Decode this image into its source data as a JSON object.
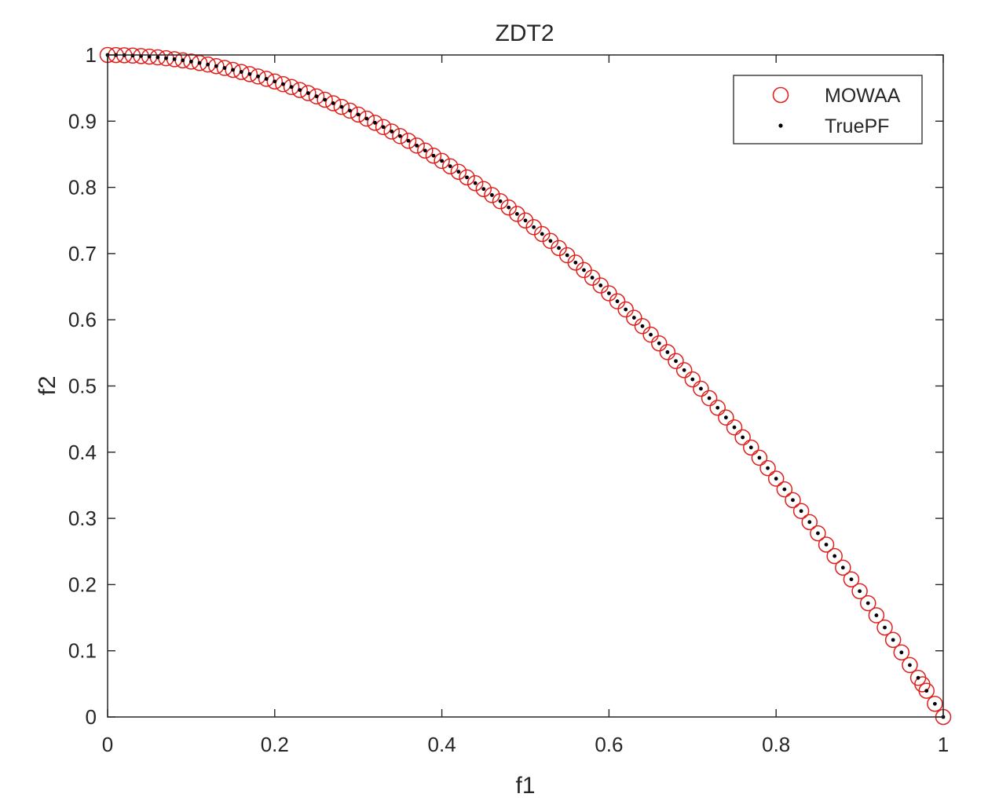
{
  "chart_data": {
    "type": "scatter",
    "title": "ZDT2",
    "xlabel": "f1",
    "ylabel": "f2",
    "xlim": [
      0,
      1
    ],
    "ylim": [
      0,
      1
    ],
    "xticks": [
      0,
      0.2,
      0.4,
      0.6,
      0.8,
      1
    ],
    "yticks": [
      0,
      0.1,
      0.2,
      0.3,
      0.4,
      0.5,
      0.6,
      0.7,
      0.8,
      0.9,
      1
    ],
    "xtick_labels": [
      "0",
      "0.2",
      "0.4",
      "0.6",
      "0.8",
      "1"
    ],
    "ytick_labels": [
      "0",
      "0.1",
      "0.2",
      "0.3",
      "0.4",
      "0.5",
      "0.6",
      "0.7",
      "0.8",
      "0.9",
      "1"
    ],
    "grid": false,
    "box": true,
    "legend": {
      "position": "top-right"
    },
    "series_relation": "f2 = 1 - f1^2",
    "series": [
      {
        "name": "MOWAA",
        "marker": "open-circle",
        "color": "#e0201c",
        "x": [
          0,
          0.01,
          0.02,
          0.03,
          0.04,
          0.05,
          0.06,
          0.07,
          0.08,
          0.09,
          0.1,
          0.11,
          0.12,
          0.13,
          0.14,
          0.15,
          0.16,
          0.17,
          0.18,
          0.19,
          0.2,
          0.21,
          0.22,
          0.23,
          0.24,
          0.25,
          0.26,
          0.27,
          0.28,
          0.29,
          0.3,
          0.31,
          0.32,
          0.33,
          0.34,
          0.35,
          0.36,
          0.37,
          0.38,
          0.39,
          0.4,
          0.41,
          0.42,
          0.43,
          0.44,
          0.45,
          0.46,
          0.47,
          0.48,
          0.49,
          0.5,
          0.51,
          0.52,
          0.53,
          0.54,
          0.55,
          0.56,
          0.57,
          0.58,
          0.59,
          0.6,
          0.61,
          0.62,
          0.63,
          0.64,
          0.65,
          0.66,
          0.67,
          0.68,
          0.69,
          0.7,
          0.71,
          0.72,
          0.73,
          0.74,
          0.75,
          0.76,
          0.77,
          0.78,
          0.79,
          0.8,
          0.81,
          0.82,
          0.83,
          0.84,
          0.85,
          0.86,
          0.87,
          0.88,
          0.89,
          0.9,
          0.91,
          0.92,
          0.93,
          0.94,
          0.95,
          0.96,
          0.97,
          0.975,
          0.98,
          0.99,
          1.0
        ],
        "y": [
          1.0,
          0.9999,
          0.9996,
          0.9991,
          0.9984,
          0.9975,
          0.9964,
          0.9951,
          0.9936,
          0.9919,
          0.99,
          0.9879,
          0.9856,
          0.9831,
          0.9804,
          0.9775,
          0.9744,
          0.9711,
          0.9676,
          0.9639,
          0.96,
          0.9559,
          0.9516,
          0.9471,
          0.9424,
          0.9375,
          0.9324,
          0.9271,
          0.9216,
          0.9159,
          0.91,
          0.9039,
          0.8976,
          0.8911,
          0.8844,
          0.8775,
          0.8704,
          0.8631,
          0.8556,
          0.8479,
          0.84,
          0.8319,
          0.8236,
          0.8151,
          0.8064,
          0.7975,
          0.7884,
          0.7791,
          0.7696,
          0.7599,
          0.75,
          0.7399,
          0.7296,
          0.7191,
          0.7084,
          0.6975,
          0.6864,
          0.6751,
          0.6636,
          0.6519,
          0.64,
          0.6279,
          0.6156,
          0.6031,
          0.5904,
          0.5775,
          0.5644,
          0.5511,
          0.5376,
          0.5239,
          0.51,
          0.4959,
          0.4816,
          0.4671,
          0.4524,
          0.4375,
          0.4224,
          0.4071,
          0.3916,
          0.3759,
          0.36,
          0.3439,
          0.3276,
          0.3111,
          0.2944,
          0.2775,
          0.2604,
          0.2431,
          0.2256,
          0.2079,
          0.19,
          0.1719,
          0.1536,
          0.1351,
          0.1164,
          0.0975,
          0.0784,
          0.0591,
          0.0494,
          0.0396,
          0.0199,
          0.0
        ]
      },
      {
        "name": "TruePF",
        "marker": "dot",
        "color": "#000000",
        "x": [
          0,
          0.01,
          0.02,
          0.03,
          0.04,
          0.05,
          0.06,
          0.07,
          0.08,
          0.09,
          0.1,
          0.11,
          0.12,
          0.13,
          0.14,
          0.15,
          0.16,
          0.17,
          0.18,
          0.19,
          0.2,
          0.21,
          0.22,
          0.23,
          0.24,
          0.25,
          0.26,
          0.27,
          0.28,
          0.29,
          0.3,
          0.31,
          0.32,
          0.33,
          0.34,
          0.35,
          0.36,
          0.37,
          0.38,
          0.39,
          0.4,
          0.41,
          0.42,
          0.43,
          0.44,
          0.45,
          0.46,
          0.47,
          0.48,
          0.49,
          0.5,
          0.51,
          0.52,
          0.53,
          0.54,
          0.55,
          0.56,
          0.57,
          0.58,
          0.59,
          0.6,
          0.61,
          0.62,
          0.63,
          0.64,
          0.65,
          0.66,
          0.67,
          0.68,
          0.69,
          0.7,
          0.71,
          0.72,
          0.73,
          0.74,
          0.75,
          0.76,
          0.77,
          0.78,
          0.79,
          0.8,
          0.81,
          0.82,
          0.83,
          0.84,
          0.85,
          0.86,
          0.87,
          0.88,
          0.89,
          0.9,
          0.91,
          0.92,
          0.93,
          0.94,
          0.95,
          0.96,
          0.97,
          0.98,
          0.99,
          1.0
        ],
        "y": [
          1.0,
          0.9999,
          0.9996,
          0.9991,
          0.9984,
          0.9975,
          0.9964,
          0.9951,
          0.9936,
          0.9919,
          0.99,
          0.9879,
          0.9856,
          0.9831,
          0.9804,
          0.9775,
          0.9744,
          0.9711,
          0.9676,
          0.9639,
          0.96,
          0.9559,
          0.9516,
          0.9471,
          0.9424,
          0.9375,
          0.9324,
          0.9271,
          0.9216,
          0.9159,
          0.91,
          0.9039,
          0.8976,
          0.8911,
          0.8844,
          0.8775,
          0.8704,
          0.8631,
          0.8556,
          0.8479,
          0.84,
          0.8319,
          0.8236,
          0.8151,
          0.8064,
          0.7975,
          0.7884,
          0.7791,
          0.7696,
          0.7599,
          0.75,
          0.7399,
          0.7296,
          0.7191,
          0.7084,
          0.6975,
          0.6864,
          0.6751,
          0.6636,
          0.6519,
          0.64,
          0.6279,
          0.6156,
          0.6031,
          0.5904,
          0.5775,
          0.5644,
          0.5511,
          0.5376,
          0.5239,
          0.51,
          0.4959,
          0.4816,
          0.4671,
          0.4524,
          0.4375,
          0.4224,
          0.4071,
          0.3916,
          0.3759,
          0.36,
          0.3439,
          0.3276,
          0.3111,
          0.2944,
          0.2775,
          0.2604,
          0.2431,
          0.2256,
          0.2079,
          0.19,
          0.1719,
          0.1536,
          0.1351,
          0.1164,
          0.0975,
          0.0784,
          0.0591,
          0.0396,
          0.0199,
          0.0
        ]
      }
    ]
  }
}
